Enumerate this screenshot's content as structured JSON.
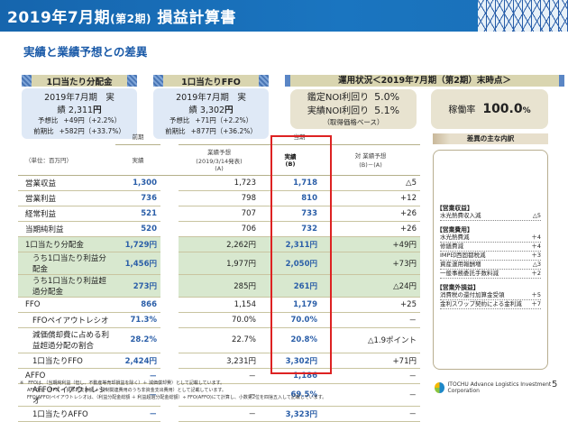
{
  "header": {
    "title_prefix": "2019年7月期",
    "title_period": "(第2期)",
    "title_main": "損益計算書"
  },
  "subtitle": "実績と業績予想との差異",
  "kpi_distribution": {
    "title": "1口当たり分配金",
    "main_label": "2019年7月期　実績",
    "main_value": "2,311",
    "main_unit": "円",
    "vs_forecast_label": "予想比",
    "vs_forecast_value": "+49円（+2.2%）",
    "vs_prev_label": "前期比",
    "vs_prev_value": "+582円（+33.7%）"
  },
  "kpi_ffo": {
    "title": "1口当たりFFO",
    "main_label": "2019年7月期　実績",
    "main_value": "3,302",
    "main_unit": "円",
    "vs_forecast_label": "予想比",
    "vs_forecast_value": "+71円（+2.2%）",
    "vs_prev_label": "前期比",
    "vs_prev_value": "+877円（+36.2%）"
  },
  "operations": {
    "title": "運用状況＜2019年7月期（第2期）末時点＞",
    "appraisal_noi_label": "鑑定NOI利回り",
    "appraisal_noi_value": "5.0%",
    "actual_noi_label": "実績NOI利回り",
    "actual_noi_value": "5.1%",
    "basis_note": "（取得価格ベース）",
    "occupancy_label": "稼働率",
    "occupancy_value": "100.0",
    "occupancy_unit": "%"
  },
  "table": {
    "unit_label": "（単位：百万円）",
    "group_prev": "前期",
    "group_current": "当期",
    "col_prev_actual": "実績",
    "col_forecast_line1": "業績予想",
    "col_forecast_line2": "(2019/3/14発表)",
    "col_forecast_line3": "(A)",
    "col_actual_line1": "実績",
    "col_actual_line2": "(B)",
    "col_diff_line1": "対 業績予想",
    "col_diff_line2": "(B)－(A)",
    "rows": [
      {
        "name": "営業収益",
        "prev": "1,300",
        "forecast": "1,723",
        "actual": "1,718",
        "diff": "△5",
        "green": false,
        "indent": false
      },
      {
        "name": "営業利益",
        "prev": "736",
        "forecast": "798",
        "actual": "810",
        "diff": "+12",
        "green": false,
        "indent": false
      },
      {
        "name": "経常利益",
        "prev": "521",
        "forecast": "707",
        "actual": "733",
        "diff": "+26",
        "green": false,
        "indent": false
      },
      {
        "name": "当期純利益",
        "prev": "520",
        "forecast": "706",
        "actual": "732",
        "diff": "+26",
        "green": false,
        "indent": false
      },
      {
        "name": "1口当たり分配金",
        "prev": "1,729円",
        "forecast": "2,262円",
        "actual": "2,311円",
        "diff": "+49円",
        "green": true,
        "indent": false
      },
      {
        "name": "うち1口当たり利益分配金",
        "prev": "1,456円",
        "forecast": "1,977円",
        "actual": "2,050円",
        "diff": "+73円",
        "green": true,
        "indent": true
      },
      {
        "name": "うち1口当たり利益超過分配金",
        "prev": "273円",
        "forecast": "285円",
        "actual": "261円",
        "diff": "△24円",
        "green": true,
        "indent": true
      },
      {
        "name": "FFO",
        "prev": "866",
        "forecast": "1,154",
        "actual": "1,179",
        "diff": "+25",
        "green": false,
        "indent": false
      },
      {
        "name": "FFOペイアウトレシオ",
        "prev": "71.3%",
        "forecast": "70.0%",
        "actual": "70.0%",
        "diff": "－",
        "green": false,
        "indent": true
      },
      {
        "name": "減価償却費に占める利益超過分配の割合",
        "prev": "28.2%",
        "forecast": "22.7%",
        "actual": "20.8%",
        "diff": "△1.9ポイント",
        "green": false,
        "indent": true
      },
      {
        "name": "1口当たりFFO",
        "prev": "2,424円",
        "forecast": "3,231円",
        "actual": "3,302円",
        "diff": "+71円",
        "green": false,
        "indent": true
      },
      {
        "name": "AFFO",
        "prev": "－",
        "forecast": "－",
        "actual": "1,186",
        "diff": "－",
        "green": false,
        "indent": false
      },
      {
        "name": "AFFOペイアウトレシオ",
        "prev": "－",
        "forecast": "－",
        "actual": "69.5%",
        "diff": "－",
        "green": false,
        "indent": true
      },
      {
        "name": "1口当たりAFFO",
        "prev": "－",
        "forecast": "－",
        "actual": "3,323円",
        "diff": "－",
        "green": false,
        "indent": true
      }
    ]
  },
  "variance_panel": {
    "title": "差異の主な内訳",
    "sections": [
      {
        "heading": "【営業収益】",
        "items": [
          {
            "label": "水光熱費収入減",
            "value": "△5"
          }
        ]
      },
      {
        "heading": "【営業費用】",
        "items": [
          {
            "label": "水光熱費減",
            "value": "＋4"
          },
          {
            "label": "修繕費減",
            "value": "＋4"
          },
          {
            "label": "IMP印西固都税減",
            "value": "＋3"
          },
          {
            "label": "資産運用報酬増",
            "value": "△3"
          },
          {
            "label": "一般事務委託手数料減",
            "value": "＋2"
          }
        ]
      },
      {
        "heading": "【営業外損益】",
        "items": [
          {
            "label": "消費税の還付加算金受領",
            "value": "＋5"
          },
          {
            "label": "金利スワップ契約による金利減",
            "value": "＋7"
          }
        ]
      }
    ]
  },
  "footnotes": [
    "※　FFOは、（当期純利益（但し、不動産等売却損益を除く）＋ 減価償却費）として記載しています。",
    "AFFOは、（FFO － 資本的支出額 ＋ 税制関連費用のうち非資金支出費用）として記載しています。",
    "FFO(AFFO)ペイアウトレシオは、（利益分配金総額 ＋ 利益超過分配金総額）÷ FFO(AFFO)にて計算し、小数第2位を四捨五入して記載しています。"
  ],
  "logo_text": "ITOCHU Advance Logistics Investment Corporation",
  "page_number": "5"
}
